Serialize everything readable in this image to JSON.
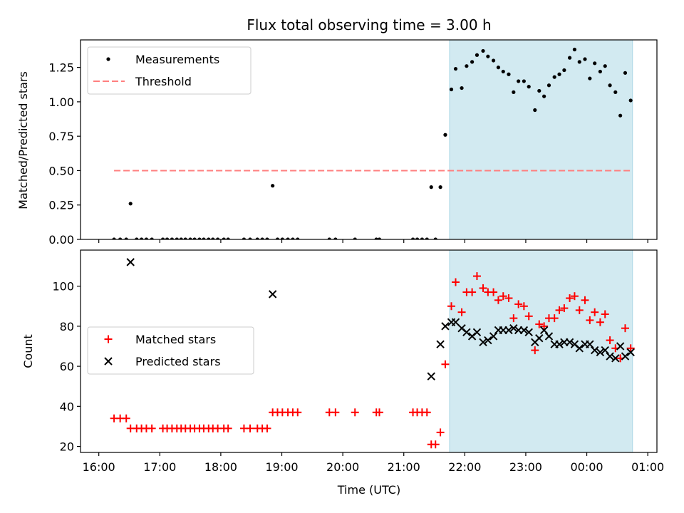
{
  "chart_data": {
    "type": "scatter",
    "title": "Flux total observing time = 3.00 h",
    "xlabel": "Time (UTC)",
    "x_unit": "hours since 16:00 UTC",
    "xlim": [
      -0.3,
      9.15
    ],
    "x_ticks": [
      0,
      1,
      2,
      3,
      4,
      5,
      6,
      7,
      8,
      9
    ],
    "x_tick_labels": [
      "16:00",
      "17:00",
      "18:00",
      "19:00",
      "20:00",
      "21:00",
      "22:00",
      "23:00",
      "00:00",
      "01:00"
    ],
    "shaded_region": {
      "x_start": 5.75,
      "x_end": 8.75,
      "color": "#add8e6"
    },
    "panels": [
      {
        "ylabel": "Matched/Predicted stars",
        "ylim": [
          0,
          1.45
        ],
        "y_ticks": [
          0,
          0.25,
          0.5,
          0.75,
          1.0,
          1.25
        ],
        "y_tick_labels": [
          "0.00",
          "0.25",
          "0.50",
          "0.75",
          "1.00",
          "1.25"
        ],
        "legend": {
          "position": "upper left",
          "entries": [
            "Measurements",
            "Threshold"
          ]
        },
        "threshold": {
          "name": "Threshold",
          "y": 0.5,
          "x_start": 0.25,
          "x_end": 8.75,
          "color": "#ff7f7f"
        },
        "series": [
          {
            "name": "Measurements",
            "marker": "dot",
            "color": "#000000",
            "x": [
              0.25,
              0.35,
              0.45,
              0.52,
              0.62,
              0.7,
              0.78,
              0.87,
              1.05,
              1.12,
              1.2,
              1.28,
              1.35,
              1.42,
              1.5,
              1.57,
              1.65,
              1.72,
              1.8,
              1.87,
              1.95,
              2.05,
              2.12,
              2.38,
              2.48,
              2.6,
              2.68,
              2.76,
              2.85,
              2.93,
              3.01,
              3.1,
              3.18,
              3.26,
              3.78,
              3.88,
              4.2,
              4.55,
              4.6,
              5.15,
              5.22,
              5.3,
              5.38,
              5.45,
              5.52,
              5.6,
              5.68,
              5.78,
              5.85,
              5.95,
              6.03,
              6.12,
              6.2,
              6.3,
              6.38,
              6.47,
              6.55,
              6.63,
              6.72,
              6.8,
              6.88,
              6.97,
              7.05,
              7.15,
              7.22,
              7.3,
              7.38,
              7.47,
              7.55,
              7.63,
              7.72,
              7.8,
              7.88,
              7.97,
              8.05,
              8.13,
              8.22,
              8.3,
              8.38,
              8.47,
              8.55,
              8.63,
              8.72
            ],
            "y": [
              0,
              0,
              0,
              0.26,
              0,
              0,
              0,
              0,
              0,
              0,
              0,
              0,
              0,
              0,
              0,
              0,
              0,
              0,
              0,
              0,
              0,
              0,
              0,
              0,
              0,
              0,
              0,
              0,
              0.39,
              0,
              0,
              0,
              0,
              0,
              0,
              0,
              0,
              0,
              0,
              0,
              0,
              0,
              0,
              0.38,
              0,
              0.38,
              0.76,
              1.09,
              1.24,
              1.1,
              1.26,
              1.29,
              1.34,
              1.37,
              1.33,
              1.3,
              1.25,
              1.22,
              1.2,
              1.07,
              1.15,
              1.15,
              1.11,
              0.94,
              1.08,
              1.04,
              1.12,
              1.18,
              1.2,
              1.23,
              1.32,
              1.38,
              1.29,
              1.31,
              1.17,
              1.28,
              1.22,
              1.26,
              1.12,
              1.07,
              0.9,
              1.21,
              1.01
            ]
          }
        ]
      },
      {
        "ylabel": "Count",
        "ylim": [
          17,
          118
        ],
        "y_ticks": [
          20,
          40,
          60,
          80,
          100
        ],
        "y_tick_labels": [
          "20",
          "40",
          "60",
          "80",
          "100"
        ],
        "legend": {
          "position": "center left",
          "entries": [
            "Matched stars",
            "Predicted stars"
          ]
        },
        "series": [
          {
            "name": "Matched stars",
            "marker": "plus",
            "color": "#ff0000",
            "x": [
              0.25,
              0.35,
              0.45,
              0.52,
              0.62,
              0.7,
              0.78,
              0.87,
              1.05,
              1.12,
              1.2,
              1.28,
              1.35,
              1.42,
              1.5,
              1.57,
              1.65,
              1.72,
              1.8,
              1.87,
              1.95,
              2.05,
              2.12,
              2.38,
              2.48,
              2.6,
              2.68,
              2.76,
              2.85,
              2.93,
              3.01,
              3.1,
              3.18,
              3.26,
              3.78,
              3.88,
              4.2,
              4.55,
              4.6,
              5.15,
              5.22,
              5.3,
              5.38,
              5.45,
              5.52,
              5.6,
              5.68,
              5.78,
              5.85,
              5.95,
              6.03,
              6.12,
              6.2,
              6.3,
              6.38,
              6.47,
              6.55,
              6.63,
              6.72,
              6.8,
              6.88,
              6.97,
              7.05,
              7.15,
              7.22,
              7.3,
              7.38,
              7.47,
              7.55,
              7.63,
              7.72,
              7.8,
              7.88,
              7.97,
              8.05,
              8.13,
              8.22,
              8.3,
              8.38,
              8.47,
              8.55,
              8.63,
              8.72
            ],
            "y": [
              34,
              34,
              34,
              29,
              29,
              29,
              29,
              29,
              29,
              29,
              29,
              29,
              29,
              29,
              29,
              29,
              29,
              29,
              29,
              29,
              29,
              29,
              29,
              29,
              29,
              29,
              29,
              29,
              37,
              37,
              37,
              37,
              37,
              37,
              37,
              37,
              37,
              37,
              37,
              37,
              37,
              37,
              37,
              21,
              21,
              27,
              61,
              90,
              102,
              87,
              97,
              97,
              105,
              99,
              97,
              97,
              93,
              95,
              94,
              84,
              91,
              90,
              85,
              68,
              81,
              80,
              84,
              84,
              88,
              89,
              94,
              95,
              88,
              93,
              83,
              87,
              82,
              86,
              73,
              69,
              64,
              79,
              69
            ]
          },
          {
            "name": "Predicted stars",
            "marker": "x",
            "color": "#000000",
            "x": [
              0.52,
              2.85,
              5.45,
              5.6,
              5.68,
              5.78,
              5.85,
              5.95,
              6.03,
              6.12,
              6.2,
              6.3,
              6.38,
              6.47,
              6.55,
              6.63,
              6.72,
              6.8,
              6.88,
              6.97,
              7.05,
              7.15,
              7.22,
              7.3,
              7.38,
              7.47,
              7.55,
              7.63,
              7.72,
              7.8,
              7.88,
              7.97,
              8.05,
              8.13,
              8.22,
              8.3,
              8.38,
              8.47,
              8.55,
              8.63,
              8.72
            ],
            "y": [
              112,
              96,
              55,
              71,
              80,
              82,
              82,
              79,
              77,
              75,
              77,
              72,
              73,
              75,
              78,
              78,
              78,
              79,
              78,
              78,
              77,
              72,
              74,
              78,
              75,
              71,
              71,
              72,
              72,
              71,
              69,
              71,
              71,
              68,
              67,
              68,
              65,
              64,
              70,
              65,
              67
            ]
          }
        ]
      }
    ]
  }
}
